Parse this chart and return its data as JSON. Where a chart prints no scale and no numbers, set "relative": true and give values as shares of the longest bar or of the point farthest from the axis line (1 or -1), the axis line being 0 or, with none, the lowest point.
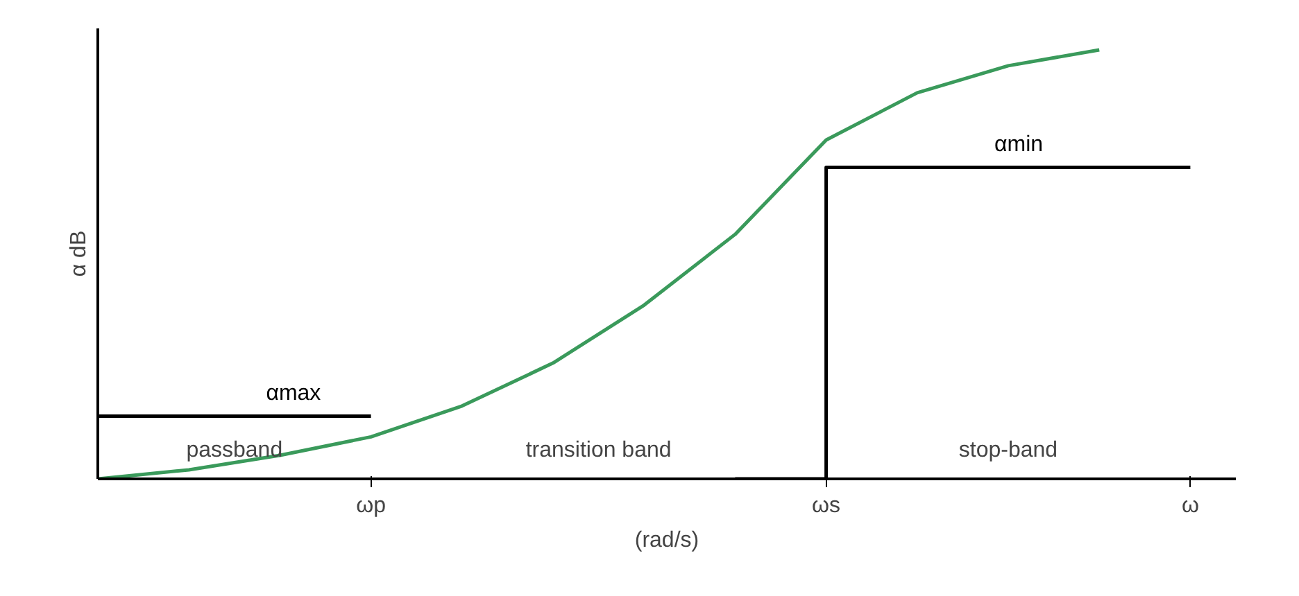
{
  "chart_data": {
    "type": "line",
    "relative": true,
    "ylabel": "α dB",
    "xlabel": "(rad/s)",
    "categories": [
      null,
      null,
      null,
      "ωp",
      null,
      null,
      null,
      null,
      "ωs",
      null,
      null,
      null,
      "ω"
    ],
    "series": [
      {
        "color": "#3a9a5b",
        "values": [
          0,
          0.021,
          0.055,
          0.098,
          0.17,
          0.27,
          0.405,
          0.57,
          0.79,
          0.9,
          0.963,
          1,
          null
        ]
      },
      {
        "name": "αmax",
        "color": "#000000",
        "values": [
          0.146,
          0.146,
          0.146,
          0.146,
          null,
          null,
          null,
          null,
          null,
          null,
          null,
          null,
          null
        ]
      },
      {
        "name": "αmin",
        "type": "step",
        "color": "#000000",
        "values": [
          null,
          null,
          null,
          null,
          null,
          null,
          null,
          0,
          0.726,
          0.726,
          0.726,
          0.726,
          0.726
        ]
      }
    ],
    "annotations": [
      "passband",
      "transition band",
      "stop-band"
    ],
    "grid": false,
    "line_style": "solid",
    "marker": "none"
  }
}
